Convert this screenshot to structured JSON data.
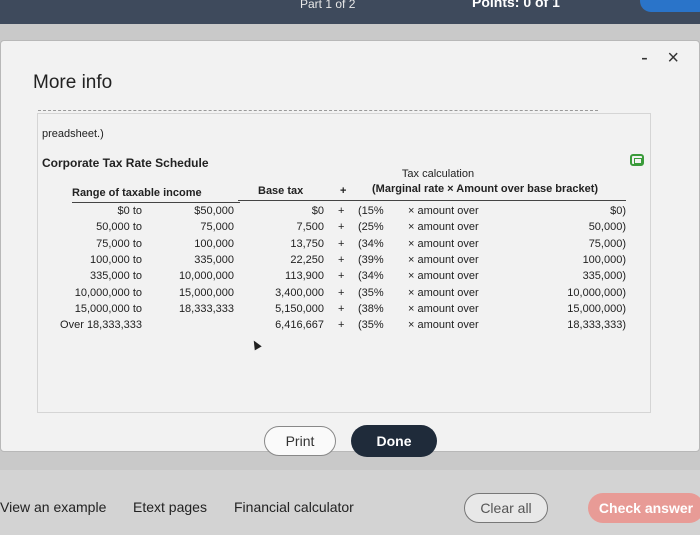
{
  "topbar": {
    "part": "Part 1 of 2",
    "points": "Points: 0 of 1"
  },
  "window": {
    "minimize": "-",
    "close": "×"
  },
  "dialog": {
    "title": "More info",
    "sheet_label": "preadsheet.)",
    "schedule_title": "Corporate Tax Rate Schedule",
    "headers": {
      "range": "Range of taxable income",
      "base": "Base tax",
      "plus": "+",
      "calc_title": "Tax calculation",
      "calc_sub": "(Marginal rate × Amount over base bracket)"
    },
    "rows": [
      {
        "from": "$0 to",
        "to": "$50,000",
        "base": "$0",
        "plus": "+",
        "rate": "(15%",
        "x": "× amount over",
        "bracket": "$0)"
      },
      {
        "from": "50,000 to",
        "to": "75,000",
        "base": "7,500",
        "plus": "+",
        "rate": "(25%",
        "x": "× amount over",
        "bracket": "50,000)"
      },
      {
        "from": "75,000 to",
        "to": "100,000",
        "base": "13,750",
        "plus": "+",
        "rate": "(34%",
        "x": "× amount over",
        "bracket": "75,000)"
      },
      {
        "from": "100,000 to",
        "to": "335,000",
        "base": "22,250",
        "plus": "+",
        "rate": "(39%",
        "x": "× amount over",
        "bracket": "100,000)"
      },
      {
        "from": "335,000 to",
        "to": "10,000,000",
        "base": "113,900",
        "plus": "+",
        "rate": "(34%",
        "x": "× amount over",
        "bracket": "335,000)"
      },
      {
        "from": "10,000,000 to",
        "to": "15,000,000",
        "base": "3,400,000",
        "plus": "+",
        "rate": "(35%",
        "x": "× amount over",
        "bracket": "10,000,000)"
      },
      {
        "from": "15,000,000 to",
        "to": "18,333,333",
        "base": "5,150,000",
        "plus": "+",
        "rate": "(38%",
        "x": "× amount over",
        "bracket": "15,000,000)"
      },
      {
        "from": "Over 18,333,333",
        "to": "",
        "base": "6,416,667",
        "plus": "+",
        "rate": "(35%",
        "x": "× amount over",
        "bracket": "18,333,333)"
      }
    ],
    "print_label": "Print",
    "done_label": "Done"
  },
  "bottom": {
    "view_example": "View an example",
    "etext": "Etext pages",
    "calculator": "Financial calculator",
    "clear_all": "Clear all",
    "check_answer": "Check answer"
  }
}
